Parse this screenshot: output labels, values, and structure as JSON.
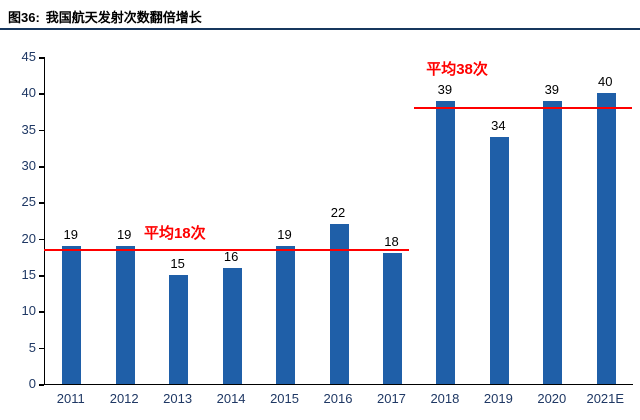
{
  "header": {
    "prefix": "图36:",
    "title": "我国航天发射次数翻倍增长"
  },
  "chart_data": {
    "type": "bar",
    "title": "图36: 我国航天发射次数翻倍增长",
    "categories": [
      "2011",
      "2012",
      "2013",
      "2014",
      "2015",
      "2016",
      "2017",
      "2018",
      "2019",
      "2020",
      "2021E"
    ],
    "values": [
      19,
      19,
      15,
      16,
      19,
      22,
      18,
      39,
      34,
      39,
      40
    ],
    "xlabel": "",
    "ylabel": "",
    "ylim": [
      0,
      45
    ],
    "ytick_step": 5,
    "grid": false,
    "legend_position": "none",
    "bar_color": "#1F5FA8",
    "value_label_color": "#000000",
    "tick_label_color": "#1F3864",
    "axis_color": "#000000",
    "annotations": [
      {
        "label": "平均18次",
        "value": 18.5,
        "x_start": 0.0,
        "x_end": 0.62,
        "label_x": 0.17,
        "label_dy": -24,
        "color": "#FF0000"
      },
      {
        "label": "平均38次",
        "value": 38,
        "x_start": 0.63,
        "x_end": 1.0,
        "label_x": 0.65,
        "label_dy": -46,
        "color": "#FF0000"
      }
    ]
  }
}
